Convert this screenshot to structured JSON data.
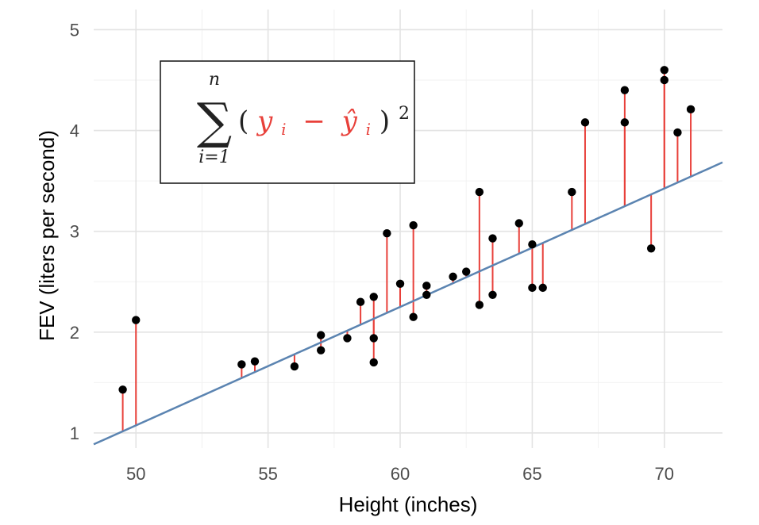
{
  "chart_data": {
    "type": "scatter",
    "xlabel": "Height (inches)",
    "ylabel": "FEV (liters per second)",
    "xlim": [
      48.4,
      72.2
    ],
    "ylim": [
      0.85,
      5.2
    ],
    "x_ticks": [
      50,
      55,
      60,
      65,
      70
    ],
    "x_tick_labels": [
      "50",
      "55",
      "60",
      "65",
      "70"
    ],
    "y_ticks": [
      1,
      2,
      3,
      4,
      5
    ],
    "y_tick_labels": [
      "1",
      "2",
      "3",
      "4",
      "5"
    ],
    "grid": true,
    "regression_line": {
      "intercept": -4.8,
      "slope": 0.1175,
      "color": "#5b84b1"
    },
    "residual_color": "#e8403a",
    "point_color": "#000000",
    "annotation": {
      "latex": "\\sum_{i=1}^{n}(y_i - \\hat{y}_i)^2",
      "sum_symbol": "∑",
      "upper": "n",
      "lower": "i=1",
      "open_paren": "(",
      "y_term": "y",
      "sub_i": "i",
      "minus": "−",
      "yhat_term": "ŷ",
      "sub_i2": "i",
      "close_paren": ")",
      "power": "2"
    },
    "points": [
      {
        "x": 49.5,
        "y": 1.43
      },
      {
        "x": 50.0,
        "y": 2.12
      },
      {
        "x": 54.0,
        "y": 1.68
      },
      {
        "x": 54.5,
        "y": 1.71
      },
      {
        "x": 56.0,
        "y": 1.66
      },
      {
        "x": 57.0,
        "y": 1.97
      },
      {
        "x": 57.0,
        "y": 1.82
      },
      {
        "x": 58.0,
        "y": 1.94
      },
      {
        "x": 58.5,
        "y": 2.3
      },
      {
        "x": 59.0,
        "y": 2.35
      },
      {
        "x": 59.0,
        "y": 1.94
      },
      {
        "x": 59.0,
        "y": 1.7
      },
      {
        "x": 59.5,
        "y": 2.98
      },
      {
        "x": 60.0,
        "y": 2.48
      },
      {
        "x": 60.5,
        "y": 3.06
      },
      {
        "x": 60.5,
        "y": 2.15
      },
      {
        "x": 61.0,
        "y": 2.46
      },
      {
        "x": 61.0,
        "y": 2.37
      },
      {
        "x": 62.0,
        "y": 2.55
      },
      {
        "x": 62.5,
        "y": 2.6
      },
      {
        "x": 63.0,
        "y": 3.39
      },
      {
        "x": 63.0,
        "y": 2.27
      },
      {
        "x": 63.5,
        "y": 2.93
      },
      {
        "x": 63.5,
        "y": 2.37
      },
      {
        "x": 64.5,
        "y": 3.08
      },
      {
        "x": 65.0,
        "y": 2.87
      },
      {
        "x": 65.0,
        "y": 2.44
      },
      {
        "x": 65.4,
        "y": 2.44
      },
      {
        "x": 66.5,
        "y": 3.39
      },
      {
        "x": 67.0,
        "y": 4.08
      },
      {
        "x": 68.5,
        "y": 4.4
      },
      {
        "x": 68.5,
        "y": 4.08
      },
      {
        "x": 69.5,
        "y": 2.83
      },
      {
        "x": 70.0,
        "y": 4.6
      },
      {
        "x": 70.0,
        "y": 4.5
      },
      {
        "x": 70.5,
        "y": 3.98
      },
      {
        "x": 71.0,
        "y": 4.21
      }
    ]
  }
}
